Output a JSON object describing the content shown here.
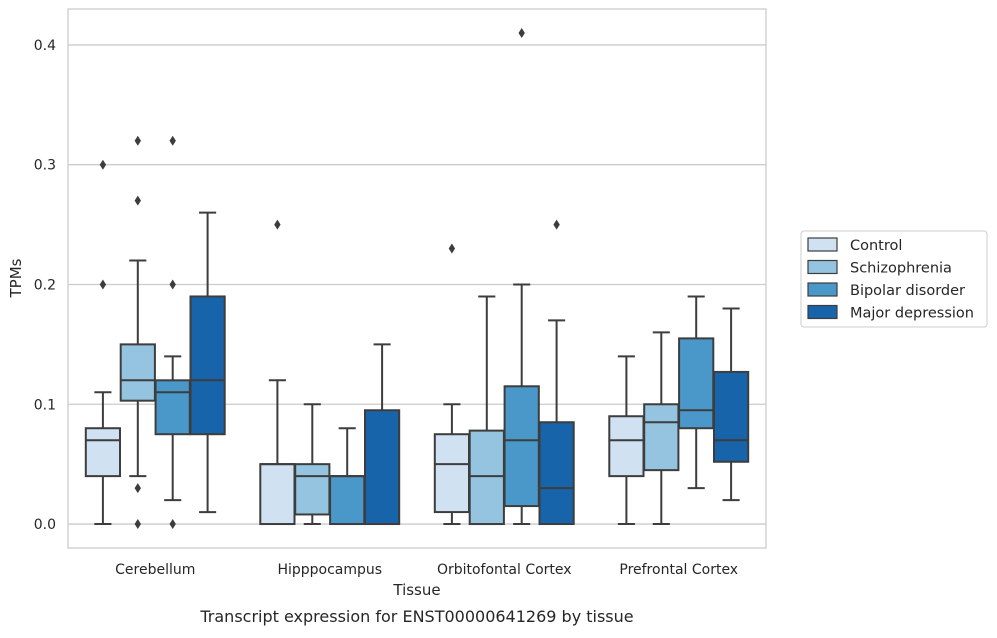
{
  "chart_data": {
    "type": "box",
    "title": "",
    "caption": "Transcript expression for ENST00000641269 by tissue",
    "xlabel": "Tissue",
    "ylabel": "TPMs",
    "ylim": [
      -0.02,
      0.43
    ],
    "yticks": [
      0.0,
      0.1,
      0.2,
      0.3,
      0.4
    ],
    "ytick_labels": [
      "0.0",
      "0.1",
      "0.2",
      "0.3",
      "0.4"
    ],
    "grid": "horizontal",
    "legend_position": "right",
    "categories": [
      "Cerebellum",
      "Hipppocampus",
      "Orbitofontal Cortex",
      "Prefrontal Cortex"
    ],
    "series": [
      {
        "name": "Control",
        "color": "#d0e1f2",
        "boxes": [
          {
            "whislo": 0.0,
            "q1": 0.04,
            "med": 0.07,
            "q3": 0.08,
            "whishi": 0.11,
            "fliers": [
              0.2,
              0.3
            ]
          },
          {
            "whislo": 0.0,
            "q1": 0.0,
            "med": 0.05,
            "q3": 0.05,
            "whishi": 0.12,
            "fliers": [
              0.25
            ]
          },
          {
            "whislo": 0.0,
            "q1": 0.01,
            "med": 0.05,
            "q3": 0.075,
            "whishi": 0.1,
            "fliers": [
              0.23
            ]
          },
          {
            "whislo": 0.0,
            "q1": 0.04,
            "med": 0.07,
            "q3": 0.09,
            "whishi": 0.14,
            "fliers": []
          }
        ]
      },
      {
        "name": "Schizophrenia",
        "color": "#94c4df",
        "boxes": [
          {
            "whislo": 0.04,
            "q1": 0.103,
            "med": 0.12,
            "q3": 0.15,
            "whishi": 0.22,
            "fliers": [
              0.0,
              0.03,
              0.27,
              0.32
            ]
          },
          {
            "whislo": 0.0,
            "q1": 0.008,
            "med": 0.04,
            "q3": 0.05,
            "whishi": 0.1,
            "fliers": []
          },
          {
            "whislo": 0.0,
            "q1": 0.0,
            "med": 0.04,
            "q3": 0.078,
            "whishi": 0.19,
            "fliers": []
          },
          {
            "whislo": 0.0,
            "q1": 0.045,
            "med": 0.085,
            "q3": 0.1,
            "whishi": 0.16,
            "fliers": []
          }
        ]
      },
      {
        "name": "Bipolar disorder",
        "color": "#4a98c9",
        "boxes": [
          {
            "whislo": 0.02,
            "q1": 0.075,
            "med": 0.11,
            "q3": 0.12,
            "whishi": 0.14,
            "fliers": [
              0.0,
              0.2,
              0.32
            ]
          },
          {
            "whislo": 0.0,
            "q1": 0.0,
            "med": 0.04,
            "q3": 0.04,
            "whishi": 0.08,
            "fliers": []
          },
          {
            "whislo": 0.0,
            "q1": 0.015,
            "med": 0.07,
            "q3": 0.115,
            "whishi": 0.2,
            "fliers": [
              0.41
            ]
          },
          {
            "whislo": 0.03,
            "q1": 0.08,
            "med": 0.095,
            "q3": 0.155,
            "whishi": 0.19,
            "fliers": []
          }
        ]
      },
      {
        "name": "Major depression",
        "color": "#1764ab",
        "boxes": [
          {
            "whislo": 0.01,
            "q1": 0.075,
            "med": 0.12,
            "q3": 0.19,
            "whishi": 0.26,
            "fliers": []
          },
          {
            "whislo": 0.0,
            "q1": 0.0,
            "med": 0.0,
            "q3": 0.095,
            "whishi": 0.15,
            "fliers": []
          },
          {
            "whislo": 0.0,
            "q1": 0.0,
            "med": 0.03,
            "q3": 0.085,
            "whishi": 0.17,
            "fliers": [
              0.25
            ]
          },
          {
            "whislo": 0.02,
            "q1": 0.052,
            "med": 0.07,
            "q3": 0.127,
            "whishi": 0.18,
            "fliers": []
          }
        ]
      }
    ]
  }
}
